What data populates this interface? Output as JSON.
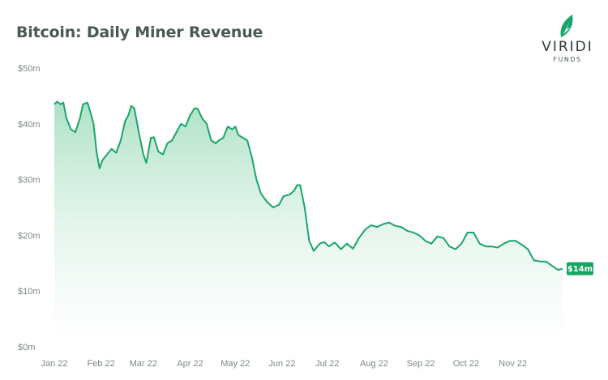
{
  "header": {
    "title": "Bitcoin: Daily Miner Revenue"
  },
  "logo": {
    "name": "VIRIDI",
    "sub": "FUNDS",
    "icon": "leaf-icon"
  },
  "colors": {
    "line": "#1aa56a",
    "fill_top": "#9fdcbc",
    "fill_bottom": "#ffffff",
    "label_bg": "#16a463"
  },
  "chart_data": {
    "type": "area",
    "title": "Bitcoin: Daily Miner Revenue",
    "xlabel": "",
    "ylabel": "",
    "ylim": [
      0,
      50
    ],
    "y_unit": "millions USD",
    "yticks": [
      0,
      10,
      20,
      30,
      40,
      50
    ],
    "ytick_labels": [
      "$0m",
      "$10m",
      "$20m",
      "$30m",
      "$40m",
      "$50m"
    ],
    "xlim": [
      "2022-01-01",
      "2022-12-04"
    ],
    "xticks": [
      "2022-01-01",
      "2022-02-01",
      "2022-03-01",
      "2022-04-01",
      "2022-05-01",
      "2022-06-01",
      "2022-07-01",
      "2022-08-01",
      "2022-09-01",
      "2022-10-01",
      "2022-11-01"
    ],
    "xtick_labels": [
      "Jan 22",
      "Feb 22",
      "Mar 22",
      "Apr 22",
      "May 22",
      "Jun 22",
      "Jul 22",
      "Aug 22",
      "Sep 22",
      "Oct 22",
      "Nov 22"
    ],
    "grid": false,
    "end_label": "$14m",
    "series": [
      {
        "x": [
          "2022-01-01",
          "2022-01-03",
          "2022-01-05",
          "2022-01-07",
          "2022-01-09",
          "2022-01-12",
          "2022-01-15",
          "2022-01-18",
          "2022-01-20",
          "2022-01-23",
          "2022-01-25",
          "2022-01-27",
          "2022-01-29",
          "2022-01-31",
          "2022-02-02",
          "2022-02-05",
          "2022-02-08",
          "2022-02-11",
          "2022-02-14",
          "2022-02-17",
          "2022-02-19",
          "2022-02-21",
          "2022-02-23",
          "2022-02-26",
          "2022-03-01",
          "2022-03-03",
          "2022-03-06",
          "2022-03-08",
          "2022-03-11",
          "2022-03-14",
          "2022-03-17",
          "2022-03-20",
          "2022-03-23",
          "2022-03-26",
          "2022-03-29",
          "2022-04-01",
          "2022-04-04",
          "2022-04-06",
          "2022-04-09",
          "2022-04-12",
          "2022-04-15",
          "2022-04-18",
          "2022-04-20",
          "2022-04-23",
          "2022-04-26",
          "2022-04-29",
          "2022-05-01",
          "2022-05-03",
          "2022-05-06",
          "2022-05-09",
          "2022-05-12",
          "2022-05-15",
          "2022-05-18",
          "2022-05-22",
          "2022-05-26",
          "2022-05-30",
          "2022-06-02",
          "2022-06-06",
          "2022-06-09",
          "2022-06-11",
          "2022-06-13",
          "2022-06-16",
          "2022-06-19",
          "2022-06-22",
          "2022-06-26",
          "2022-06-29",
          "2022-07-02",
          "2022-07-06",
          "2022-07-10",
          "2022-07-14",
          "2022-07-18",
          "2022-07-22",
          "2022-07-26",
          "2022-07-30",
          "2022-08-03",
          "2022-08-07",
          "2022-08-11",
          "2022-08-15",
          "2022-08-19",
          "2022-08-23",
          "2022-08-27",
          "2022-08-31",
          "2022-09-04",
          "2022-09-08",
          "2022-09-12",
          "2022-09-16",
          "2022-09-20",
          "2022-09-24",
          "2022-09-28",
          "2022-10-02",
          "2022-10-06",
          "2022-10-10",
          "2022-10-14",
          "2022-10-18",
          "2022-10-22",
          "2022-10-26",
          "2022-10-30",
          "2022-11-03",
          "2022-11-07",
          "2022-11-11",
          "2022-11-15",
          "2022-11-19",
          "2022-11-23",
          "2022-11-27",
          "2022-12-01",
          "2022-12-04"
        ],
        "values": [
          43.5,
          44.0,
          43.5,
          43.8,
          41.0,
          39.0,
          38.5,
          41.0,
          43.5,
          43.8,
          42.0,
          40.0,
          35.0,
          32.0,
          33.5,
          34.5,
          35.5,
          34.8,
          37.0,
          40.5,
          41.5,
          43.2,
          42.8,
          38.5,
          34.5,
          33.0,
          37.5,
          37.6,
          35.0,
          34.5,
          36.5,
          37.0,
          38.5,
          40.0,
          39.5,
          41.5,
          42.8,
          42.7,
          41.0,
          40.0,
          37.0,
          36.5,
          37.0,
          37.5,
          39.5,
          39.0,
          39.5,
          38.0,
          37.5,
          37.0,
          34.0,
          30.0,
          27.5,
          26.0,
          25.0,
          25.5,
          27.0,
          27.3,
          28.0,
          29.0,
          29.0,
          25.0,
          19.0,
          17.2,
          18.5,
          18.8,
          18.0,
          18.7,
          17.5,
          18.5,
          17.6,
          19.5,
          21.0,
          21.8,
          21.5,
          22.0,
          22.3,
          21.7,
          21.5,
          20.8,
          20.5,
          20.0,
          19.0,
          18.5,
          19.8,
          19.5,
          18.0,
          17.5,
          18.5,
          20.5,
          20.5,
          18.5,
          18.0,
          18.0,
          17.8,
          18.5,
          19.0,
          19.0,
          18.3,
          17.5,
          15.5,
          15.3,
          15.3,
          14.5,
          13.8,
          14.0
        ]
      }
    ]
  }
}
